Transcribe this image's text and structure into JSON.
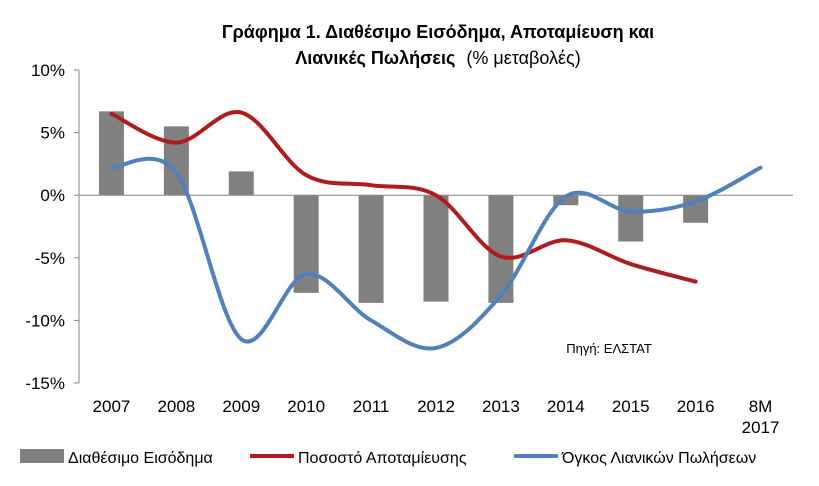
{
  "chart_data": {
    "type": "bar+line",
    "title_line1": "Γράφημα 1. Διαθέσιμο Εισόδημα, Αποταμίευση και",
    "title_line2_bold": "Λιανικές Πωλήσεις",
    "title_line2_normal": "(% μεταβολές)",
    "source_note": "Πηγή: ΕΛΣΤΑΤ",
    "categories": [
      "2007",
      "2008",
      "2009",
      "2010",
      "2011",
      "2012",
      "2013",
      "2014",
      "2015",
      "2016",
      "8M 2017"
    ],
    "y_ticks": [
      "10%",
      "5%",
      "0%",
      "-5%",
      "-10%",
      "-15%"
    ],
    "ylim": [
      -15,
      10
    ],
    "grid": false,
    "legend_position": "bottom",
    "series": [
      {
        "name": "Διαθέσιμο Εισόδημα",
        "kind": "bar",
        "color": "#808080",
        "values": [
          6.7,
          5.5,
          1.9,
          -7.8,
          -8.6,
          -8.5,
          -8.6,
          -0.8,
          -3.7,
          -2.2,
          null
        ]
      },
      {
        "name": "Ποσοστό Αποταμίευσης",
        "kind": "line",
        "color": "#b11b1b",
        "values": [
          6.5,
          4.2,
          6.6,
          1.6,
          0.8,
          0.0,
          -4.9,
          -3.6,
          -5.5,
          -6.9,
          null
        ]
      },
      {
        "name": "Όγκος Λιανικών Πωλήσεων",
        "kind": "line",
        "color": "#4f81bd",
        "values": [
          2.2,
          1.8,
          -11.5,
          -6.3,
          -10.0,
          -12.2,
          -8.0,
          -0.1,
          -1.3,
          -0.5,
          2.2
        ]
      }
    ]
  }
}
